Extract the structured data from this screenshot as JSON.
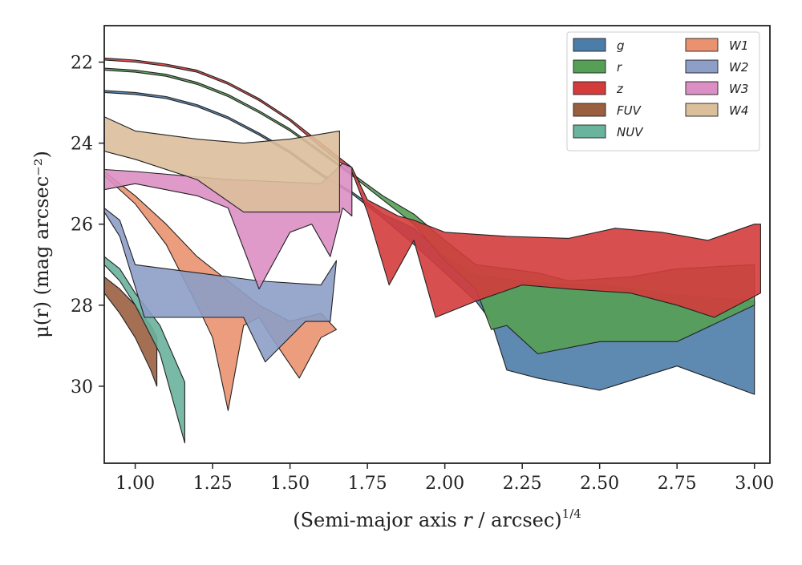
{
  "chart_data": {
    "type": "area",
    "xlabel_main": "(Semi-major axis ",
    "xlabel_var": "r",
    "xlabel_unit": " / arcsec)",
    "xlabel_exp": "1/4",
    "ylabel": "μ(r) (mag arcsec⁻²)",
    "xlim": [
      0.9,
      3.05
    ],
    "ylim": [
      31.9,
      21.1
    ],
    "y_inverted": true,
    "grid": false,
    "legend_position": "top-right",
    "legend_columns": 2,
    "xticks": [
      1.0,
      1.25,
      1.5,
      1.75,
      2.0,
      2.25,
      2.5,
      2.75,
      3.0
    ],
    "xtick_labels": [
      "1.00",
      "1.25",
      "1.50",
      "1.75",
      "2.00",
      "2.25",
      "2.50",
      "2.75",
      "3.00"
    ],
    "yticks": [
      22,
      24,
      26,
      28,
      30
    ],
    "ytick_labels": [
      "22",
      "24",
      "26",
      "28",
      "30"
    ],
    "series": [
      {
        "name": "g",
        "color": "#4c7ca8",
        "upper": [
          [
            0.9,
            22.7
          ],
          [
            1.0,
            22.75
          ],
          [
            1.1,
            22.85
          ],
          [
            1.2,
            23.05
          ],
          [
            1.3,
            23.35
          ],
          [
            1.4,
            23.75
          ],
          [
            1.5,
            24.2
          ],
          [
            1.6,
            24.75
          ],
          [
            1.7,
            25.2
          ],
          [
            1.8,
            25.75
          ],
          [
            1.9,
            26.1
          ],
          [
            2.0,
            26.8
          ],
          [
            2.1,
            27.25
          ],
          [
            2.2,
            27.35
          ],
          [
            2.3,
            27.45
          ],
          [
            2.5,
            27.5
          ],
          [
            2.75,
            27.75
          ],
          [
            3.0,
            27.9
          ]
        ],
        "lower": [
          [
            0.9,
            22.75
          ],
          [
            1.0,
            22.8
          ],
          [
            1.1,
            22.9
          ],
          [
            1.2,
            23.1
          ],
          [
            1.3,
            23.4
          ],
          [
            1.4,
            23.8
          ],
          [
            1.5,
            24.25
          ],
          [
            1.6,
            24.8
          ],
          [
            1.7,
            25.25
          ],
          [
            1.8,
            25.85
          ],
          [
            1.9,
            26.5
          ],
          [
            2.0,
            27.2
          ],
          [
            2.1,
            27.9
          ],
          [
            2.15,
            28.4
          ],
          [
            2.2,
            29.6
          ],
          [
            2.3,
            29.8
          ],
          [
            2.5,
            30.1
          ],
          [
            2.75,
            29.5
          ],
          [
            3.0,
            30.2
          ]
        ]
      },
      {
        "name": "r",
        "color": "#55a055",
        "upper": [
          [
            0.9,
            22.15
          ],
          [
            1.0,
            22.2
          ],
          [
            1.1,
            22.3
          ],
          [
            1.2,
            22.5
          ],
          [
            1.3,
            22.8
          ],
          [
            1.4,
            23.2
          ],
          [
            1.5,
            23.65
          ],
          [
            1.6,
            24.2
          ],
          [
            1.7,
            24.75
          ],
          [
            1.8,
            25.3
          ],
          [
            1.9,
            25.75
          ],
          [
            2.0,
            26.4
          ],
          [
            2.1,
            27.0
          ],
          [
            2.2,
            27.1
          ],
          [
            2.3,
            27.2
          ],
          [
            2.4,
            27.4
          ],
          [
            2.6,
            27.3
          ],
          [
            2.75,
            27.1
          ],
          [
            3.0,
            27.0
          ]
        ],
        "lower": [
          [
            0.9,
            22.2
          ],
          [
            1.0,
            22.25
          ],
          [
            1.1,
            22.35
          ],
          [
            1.2,
            22.55
          ],
          [
            1.3,
            22.85
          ],
          [
            1.4,
            23.25
          ],
          [
            1.5,
            23.7
          ],
          [
            1.6,
            24.25
          ],
          [
            1.7,
            24.8
          ],
          [
            1.8,
            25.4
          ],
          [
            1.9,
            26.0
          ],
          [
            2.0,
            26.9
          ],
          [
            2.1,
            27.6
          ],
          [
            2.15,
            28.6
          ],
          [
            2.2,
            28.5
          ],
          [
            2.3,
            29.2
          ],
          [
            2.5,
            28.9
          ],
          [
            2.75,
            28.9
          ],
          [
            3.0,
            28.0
          ]
        ]
      },
      {
        "name": "z",
        "color": "#d43c3c",
        "upper": [
          [
            0.9,
            21.9
          ],
          [
            1.0,
            21.95
          ],
          [
            1.1,
            22.05
          ],
          [
            1.2,
            22.2
          ],
          [
            1.3,
            22.5
          ],
          [
            1.4,
            22.9
          ],
          [
            1.5,
            23.4
          ],
          [
            1.6,
            24.0
          ],
          [
            1.7,
            24.6
          ],
          [
            1.75,
            25.4
          ],
          [
            1.85,
            25.8
          ],
          [
            1.9,
            25.9
          ],
          [
            2.0,
            26.2
          ],
          [
            2.2,
            26.3
          ],
          [
            2.4,
            26.35
          ],
          [
            2.55,
            26.1
          ],
          [
            2.7,
            26.2
          ],
          [
            2.85,
            26.4
          ],
          [
            3.0,
            26.0
          ],
          [
            3.02,
            26.0
          ]
        ],
        "lower": [
          [
            0.9,
            21.95
          ],
          [
            1.0,
            22.0
          ],
          [
            1.1,
            22.1
          ],
          [
            1.2,
            22.25
          ],
          [
            1.3,
            22.55
          ],
          [
            1.4,
            22.95
          ],
          [
            1.5,
            23.45
          ],
          [
            1.6,
            24.1
          ],
          [
            1.7,
            24.7
          ],
          [
            1.75,
            25.7
          ],
          [
            1.82,
            27.5
          ],
          [
            1.9,
            26.4
          ],
          [
            1.97,
            28.3
          ],
          [
            2.1,
            27.9
          ],
          [
            2.25,
            27.5
          ],
          [
            2.4,
            27.6
          ],
          [
            2.6,
            27.7
          ],
          [
            2.75,
            28.0
          ],
          [
            2.87,
            28.3
          ],
          [
            3.02,
            27.7
          ]
        ]
      },
      {
        "name": "FUV",
        "color": "#9a5f3f",
        "upper": [
          [
            0.9,
            27.3
          ],
          [
            0.95,
            27.6
          ],
          [
            1.0,
            28.0
          ],
          [
            1.05,
            28.5
          ],
          [
            1.07,
            28.8
          ]
        ],
        "lower": [
          [
            0.9,
            27.7
          ],
          [
            0.95,
            28.2
          ],
          [
            1.0,
            28.8
          ],
          [
            1.05,
            29.6
          ],
          [
            1.07,
            30.0
          ]
        ]
      },
      {
        "name": "NUV",
        "color": "#6ab39c",
        "upper": [
          [
            0.9,
            26.8
          ],
          [
            0.95,
            27.1
          ],
          [
            1.0,
            27.7
          ],
          [
            1.08,
            28.5
          ],
          [
            1.16,
            29.9
          ]
        ],
        "lower": [
          [
            0.9,
            27.0
          ],
          [
            0.95,
            27.4
          ],
          [
            1.0,
            28.0
          ],
          [
            1.08,
            29.2
          ],
          [
            1.16,
            31.4
          ]
        ]
      },
      {
        "name": "W1",
        "color": "#ea9270",
        "upper": [
          [
            0.9,
            24.7
          ],
          [
            1.0,
            25.3
          ],
          [
            1.1,
            26.0
          ],
          [
            1.2,
            26.8
          ],
          [
            1.3,
            27.4
          ],
          [
            1.4,
            28.0
          ],
          [
            1.5,
            28.4
          ],
          [
            1.6,
            28.2
          ],
          [
            1.65,
            28.6
          ]
        ],
        "lower": [
          [
            0.9,
            24.8
          ],
          [
            1.0,
            25.5
          ],
          [
            1.1,
            26.5
          ],
          [
            1.2,
            28.0
          ],
          [
            1.25,
            28.8
          ],
          [
            1.3,
            30.6
          ],
          [
            1.35,
            28.5
          ],
          [
            1.4,
            28.3
          ],
          [
            1.45,
            28.9
          ],
          [
            1.53,
            29.8
          ],
          [
            1.6,
            28.8
          ],
          [
            1.65,
            28.6
          ]
        ]
      },
      {
        "name": "W2",
        "color": "#8d9fc6",
        "upper": [
          [
            0.9,
            25.6
          ],
          [
            0.95,
            25.9
          ],
          [
            1.0,
            27.0
          ],
          [
            1.2,
            27.2
          ],
          [
            1.4,
            27.4
          ],
          [
            1.6,
            27.5
          ],
          [
            1.65,
            26.9
          ]
        ],
        "lower": [
          [
            0.9,
            25.7
          ],
          [
            0.95,
            26.3
          ],
          [
            1.03,
            28.3
          ],
          [
            1.35,
            28.3
          ],
          [
            1.42,
            29.4
          ],
          [
            1.55,
            28.4
          ],
          [
            1.63,
            28.4
          ]
        ]
      },
      {
        "name": "W3",
        "color": "#dc8fc4",
        "upper": [
          [
            0.9,
            24.65
          ],
          [
            1.0,
            24.7
          ],
          [
            1.3,
            24.9
          ],
          [
            1.6,
            25.0
          ],
          [
            1.67,
            24.5
          ],
          [
            1.7,
            24.6
          ]
        ],
        "lower": [
          [
            0.9,
            25.15
          ],
          [
            1.0,
            25.0
          ],
          [
            1.2,
            25.3
          ],
          [
            1.3,
            25.6
          ],
          [
            1.4,
            27.6
          ],
          [
            1.5,
            26.2
          ],
          [
            1.57,
            26.0
          ],
          [
            1.63,
            26.8
          ],
          [
            1.67,
            25.6
          ],
          [
            1.7,
            25.8
          ]
        ]
      },
      {
        "name": "W4",
        "color": "#dbbf9b",
        "upper": [
          [
            0.9,
            23.35
          ],
          [
            1.0,
            23.7
          ],
          [
            1.2,
            23.9
          ],
          [
            1.35,
            24.0
          ],
          [
            1.5,
            23.9
          ],
          [
            1.66,
            23.7
          ]
        ],
        "lower": [
          [
            0.9,
            24.2
          ],
          [
            1.0,
            24.4
          ],
          [
            1.2,
            24.9
          ],
          [
            1.35,
            25.7
          ],
          [
            1.5,
            25.7
          ],
          [
            1.66,
            25.7
          ]
        ]
      }
    ]
  }
}
